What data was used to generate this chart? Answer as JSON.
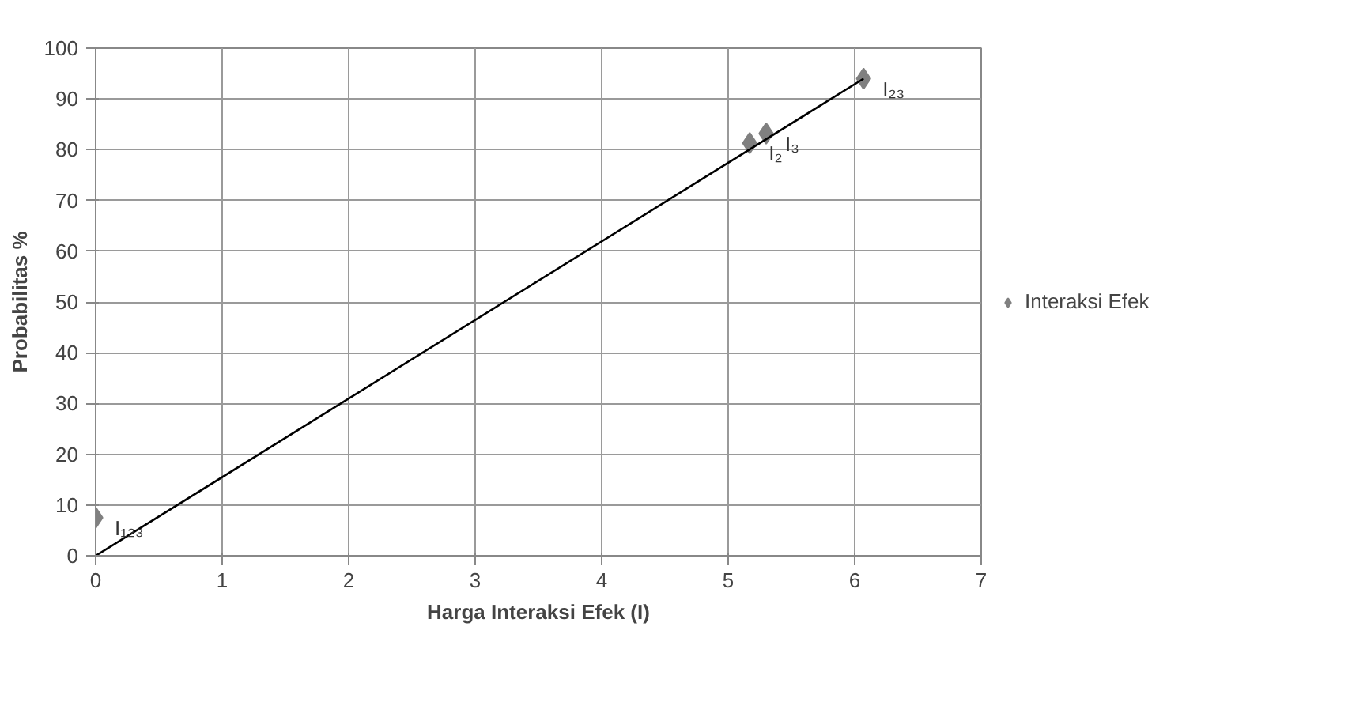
{
  "chart_data": {
    "type": "scatter",
    "xlabel": "Harga Interaksi Efek (I)",
    "ylabel": "Probabilitas %",
    "xlim": [
      0,
      7
    ],
    "xticks": [
      0,
      1,
      2,
      3,
      4,
      5,
      6,
      7
    ],
    "ylim": [
      0,
      100
    ],
    "yticks": [
      0,
      10,
      20,
      30,
      40,
      50,
      60,
      70,
      80,
      90,
      100
    ],
    "grid": true,
    "legend": "right",
    "marker": "diamond",
    "series": [
      {
        "name": "Interaksi Efek",
        "color": "#808080",
        "x": [
          0,
          5.17,
          5.3,
          6.07
        ],
        "values": [
          7.5,
          81.3,
          83.2,
          94
        ]
      },
      {
        "type": "line",
        "marker": "none",
        "color": "#000000",
        "x": [
          0,
          6.07
        ],
        "values": [
          0,
          94
        ]
      }
    ],
    "annotations": [
      {
        "text": "I₁₂₃",
        "x": 0,
        "y": 7.5
      },
      {
        "text": "I₂",
        "x": 5.17,
        "y": 81.3
      },
      {
        "text": "I₃",
        "x": 5.3,
        "y": 83.2
      },
      {
        "text": "I₂₃",
        "x": 6.07,
        "y": 94
      }
    ]
  }
}
